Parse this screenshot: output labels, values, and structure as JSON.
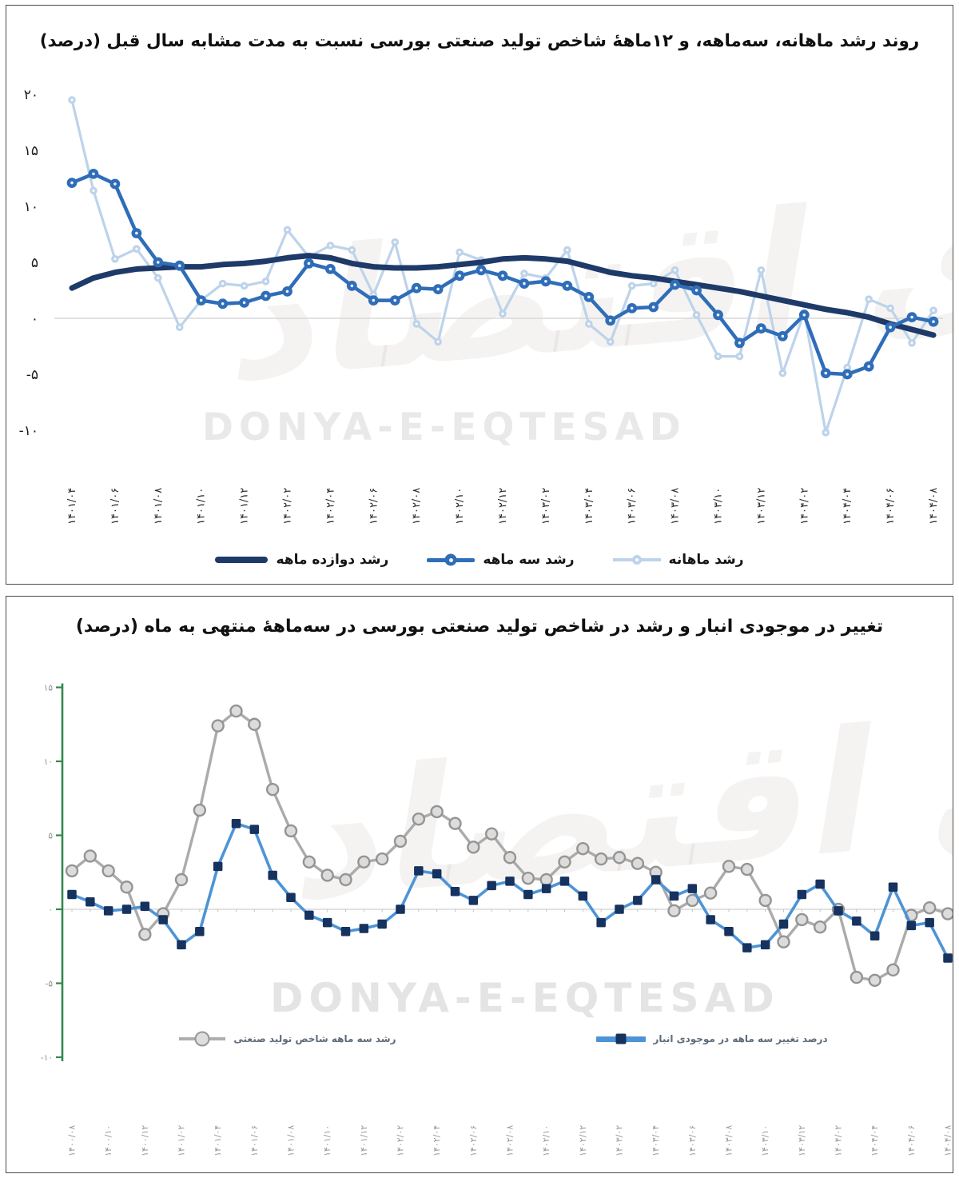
{
  "watermark": {
    "fa": "دنیای اقتصاد",
    "en": "DONYA-E-EQTESAD"
  },
  "chart_data": [
    {
      "type": "line",
      "title": "روند رشد ماهانه، سه‌ماهه، و ۱۲ماهۀ شاخص تولید صنعتی بورسی نسبت به مدت مشابه سال قبل (درصد)",
      "xlabel": "",
      "ylabel": "",
      "ylim": [
        -10,
        20
      ],
      "ytick_values": [
        20,
        15,
        10,
        5,
        0,
        -5,
        -10
      ],
      "yticks": [
        "۲۰",
        "۱۵",
        "۱۰",
        "۵",
        "۰",
        "-۵",
        "-۱۰"
      ],
      "grid": "zero-line-only",
      "legend_position": "bottom",
      "xlabel_every": 2,
      "x": [
        "۱۴۰۱/۰۴",
        "۱۴۰۱/۰۵",
        "۱۴۰۱/۰۶",
        "۱۴۰۱/۰۷",
        "۱۴۰۱/۰۸",
        "۱۴۰۱/۰۹",
        "۱۴۰۱/۱۰",
        "۱۴۰۱/۱۱",
        "۱۴۰۱/۱۲",
        "۱۴۰۲/۰۱",
        "۱۴۰۲/۰۲",
        "۱۴۰۲/۰۳",
        "۱۴۰۲/۰۴",
        "۱۴۰۲/۰۵",
        "۱۴۰۲/۰۶",
        "۱۴۰۲/۰۷",
        "۱۴۰۲/۰۸",
        "۱۴۰۲/۰۹",
        "۱۴۰۲/۱۰",
        "۱۴۰۲/۱۱",
        "۱۴۰۲/۱۲",
        "۱۴۰۳/۰۱",
        "۱۴۰۳/۰۲",
        "۱۴۰۳/۰۳",
        "۱۴۰۳/۰۴",
        "۱۴۰۳/۰۵",
        "۱۴۰۳/۰۶",
        "۱۴۰۳/۰۷",
        "۱۴۰۳/۰۸",
        "۱۴۰۳/۰۹",
        "۱۴۰۳/۱۰",
        "۱۴۰۳/۱۱",
        "۱۴۰۳/۱۲",
        "۱۴۰۴/۰۱",
        "۱۴۰۴/۰۲",
        "۱۴۰۴/۰۳",
        "۱۴۰۴/۰۴",
        "۱۴۰۴/۰۵",
        "۱۴۰۴/۰۶",
        "۱۴۰۴/۰۷",
        "۱۴۰۴/۰۸"
      ],
      "series": [
        {
          "name": "رشد دوازده ماهه",
          "color": "#1e3a68",
          "width": 7,
          "marker": "none",
          "values": [
            2.7,
            3.6,
            4.1,
            4.4,
            4.5,
            4.6,
            4.6,
            4.8,
            4.9,
            5.1,
            5.4,
            5.6,
            5.4,
            4.9,
            4.6,
            4.5,
            4.5,
            4.6,
            4.8,
            5.0,
            5.3,
            5.4,
            5.3,
            5.1,
            4.6,
            4.1,
            3.8,
            3.6,
            3.3,
            3.0,
            2.7,
            2.4,
            2.0,
            1.6,
            1.2,
            0.8,
            0.5,
            0.1,
            -0.5,
            -1.0,
            -1.5
          ]
        },
        {
          "name": "رشد سه ماهه",
          "color": "#2f6db8",
          "width": 4.5,
          "marker": "circle-dot",
          "marker_r": 6.4,
          "values": [
            12.1,
            12.9,
            12.0,
            7.6,
            5.0,
            4.7,
            1.6,
            1.3,
            1.4,
            2.0,
            2.4,
            4.9,
            4.4,
            2.9,
            1.6,
            1.6,
            2.7,
            2.6,
            3.8,
            4.3,
            3.8,
            3.1,
            3.3,
            2.9,
            1.9,
            -0.2,
            0.9,
            1.0,
            3.0,
            2.5,
            0.3,
            -2.2,
            -0.9,
            -1.6,
            0.3,
            -4.9,
            -5.0,
            -4.3,
            -0.8,
            0.1,
            -0.3
          ]
        },
        {
          "name": "رشد ماهانه",
          "color": "#bdd3ea",
          "width": 3.2,
          "marker": "circle-dot",
          "marker_r": 4.8,
          "values": [
            19.5,
            11.4,
            5.3,
            6.2,
            3.6,
            -0.8,
            1.6,
            3.1,
            2.9,
            3.3,
            7.9,
            5.5,
            6.5,
            6.1,
            2.1,
            6.8,
            -0.5,
            -2.1,
            5.9,
            5.2,
            0.4,
            4.0,
            3.6,
            6.1,
            -0.5,
            -2.1,
            2.9,
            3.1,
            4.3,
            0.3,
            -3.4,
            -3.4,
            4.3,
            -4.9,
            0.5,
            -10.2,
            -4.4,
            1.7,
            0.9,
            -2.2,
            0.7
          ]
        }
      ]
    },
    {
      "type": "line",
      "title": "تغییر در موجودی انبار و رشد در شاخص تولید صنعتی بورسی در سه‌ماهۀ منتهی به ماه (درصد)",
      "xlabel": "",
      "ylabel": "",
      "ylim": [
        -10,
        15
      ],
      "ytick_values": [
        15,
        10,
        5,
        0,
        -5,
        -10
      ],
      "yticks": [
        "۱۵",
        "۱۰",
        "۵",
        "۰",
        "-۵",
        "-۱۰"
      ],
      "grid": "zero-line-only",
      "y_axis_color": "#35884e",
      "legend_position": "inside-bottom",
      "xlabel_every": 2,
      "x": [
        "۱۴۰۰/۰۸",
        "۱۴۰۰/۰۹",
        "۱۴۰۰/۱۰",
        "۱۴۰۰/۱۱",
        "۱۴۰۰/۱۲",
        "۱۴۰۱/۰۱",
        "۱۴۰۱/۰۲",
        "۱۴۰۱/۰۳",
        "۱۴۰۱/۰۴",
        "۱۴۰۱/۰۵",
        "۱۴۰۱/۰۶",
        "۱۴۰۱/۰۷",
        "۱۴۰۱/۰۸",
        "۱۴۰۱/۰۹",
        "۱۴۰۱/۱۰",
        "۱۴۰۱/۱۱",
        "۱۴۰۱/۱۲",
        "۱۴۰۲/۰۱",
        "۱۴۰۲/۰۲",
        "۱۴۰۲/۰۳",
        "۱۴۰۲/۰۴",
        "۱۴۰۲/۰۵",
        "۱۴۰۲/۰۶",
        "۱۴۰۲/۰۷",
        "۱۴۰۲/۰۸",
        "۱۴۰۲/۰۹",
        "۱۴۰۲/۱۰",
        "۱۴۰۲/۱۱",
        "۱۴۰۲/۱۲",
        "۱۴۰۳/۰۱",
        "۱۴۰۳/۰۲",
        "۱۴۰۳/۰۳",
        "۱۴۰۳/۰۴",
        "۱۴۰۳/۰۵",
        "۱۴۰۳/۰۶",
        "۱۴۰۳/۰۷",
        "۱۴۰۳/۰۸",
        "۱۴۰۳/۰۹",
        "۱۴۰۳/۱۰",
        "۱۴۰۳/۱۱",
        "۱۴۰۳/۱۲",
        "۱۴۰۴/۰۱",
        "۱۴۰۴/۰۲",
        "۱۴۰۴/۰۳",
        "۱۴۰۴/۰۴",
        "۱۴۰۴/۰۵",
        "۱۴۰۴/۰۶",
        "۱۴۰۴/۰۷",
        "۱۴۰۴/۰۸"
      ],
      "series": [
        {
          "name": "رشد سه ماهه شاخص تولید صنعتی",
          "color": "#ababab",
          "width": 3.4,
          "marker": "open-circle",
          "marker_r": 7,
          "marker_fill": "#dcdcdc",
          "marker_stroke": "#949494",
          "values": [
            2.6,
            3.6,
            2.6,
            1.5,
            -1.7,
            -0.3,
            2.0,
            6.7,
            12.4,
            13.4,
            12.5,
            8.1,
            5.3,
            3.2,
            2.3,
            2.0,
            3.2,
            3.4,
            4.6,
            6.1,
            6.6,
            5.8,
            4.2,
            5.1,
            3.5,
            2.1,
            2.0,
            3.2,
            4.1,
            3.4,
            3.5,
            3.1,
            2.5,
            -0.1,
            0.6,
            1.1,
            2.9,
            2.7,
            0.6,
            -2.2,
            -0.7,
            -1.2,
            0.0,
            -4.6,
            -4.8,
            -4.1,
            -0.4,
            0.1,
            -0.3
          ]
        },
        {
          "name": "درصد تغییر سه ماهه در موجودی انبار",
          "color": "#4d94d6",
          "width": 3.6,
          "marker": "square",
          "marker_size": 11.5,
          "marker_fill": "#16325f",
          "values": [
            1.0,
            0.5,
            -0.1,
            0.0,
            0.2,
            -0.7,
            -2.4,
            -1.5,
            2.9,
            5.8,
            5.4,
            2.3,
            0.8,
            -0.4,
            -0.9,
            -1.5,
            -1.3,
            -1.0,
            0.0,
            2.6,
            2.4,
            1.2,
            0.6,
            1.6,
            1.9,
            1.0,
            1.4,
            1.9,
            0.9,
            -0.9,
            0.0,
            0.6,
            2.0,
            0.9,
            1.4,
            -0.7,
            -1.5,
            -2.6,
            -2.4,
            -1.0,
            1.0,
            1.7,
            -0.1,
            -0.8,
            -1.8,
            1.5,
            -1.1,
            -0.9,
            -3.3
          ]
        }
      ]
    }
  ]
}
